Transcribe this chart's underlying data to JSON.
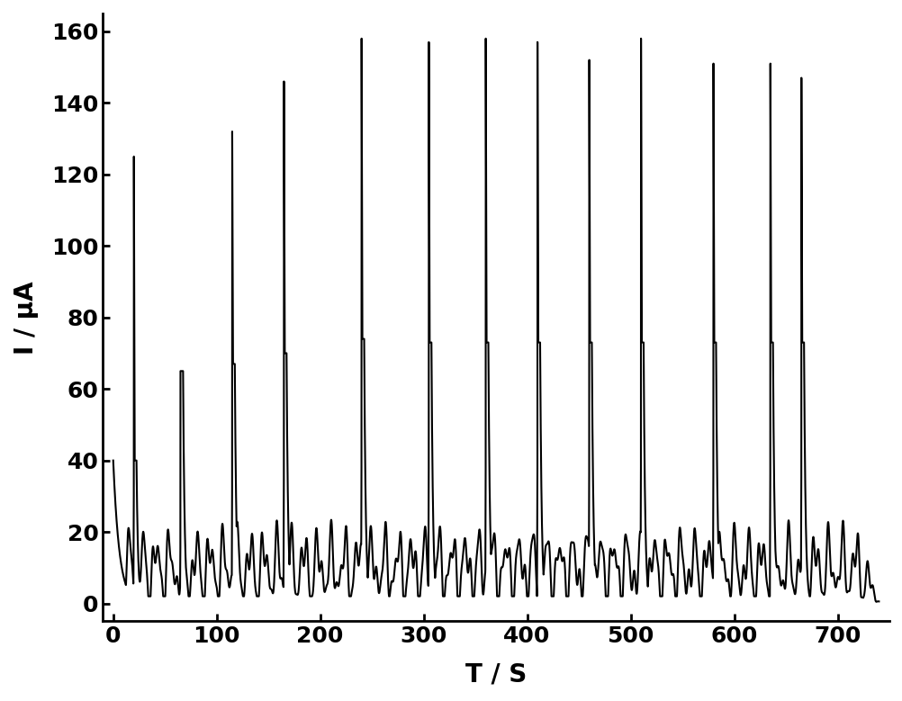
{
  "title": "",
  "xlabel": "T / S",
  "ylabel": "I / μA",
  "xlim": [
    -10,
    750
  ],
  "ylim": [
    -5,
    165
  ],
  "xticks": [
    0,
    100,
    200,
    300,
    400,
    500,
    600,
    700
  ],
  "yticks": [
    0,
    20,
    40,
    60,
    80,
    100,
    120,
    140,
    160
  ],
  "spikes": [
    {
      "t": 20,
      "peak": 125,
      "plat": 40
    },
    {
      "t": 65,
      "peak": 65,
      "plat": 65
    },
    {
      "t": 115,
      "peak": 132,
      "plat": 67
    },
    {
      "t": 165,
      "peak": 146,
      "plat": 70
    },
    {
      "t": 240,
      "peak": 158,
      "plat": 74
    },
    {
      "t": 305,
      "peak": 157,
      "plat": 73
    },
    {
      "t": 360,
      "peak": 158,
      "plat": 73
    },
    {
      "t": 410,
      "peak": 157,
      "plat": 73
    },
    {
      "t": 460,
      "peak": 152,
      "plat": 73
    },
    {
      "t": 510,
      "peak": 158,
      "plat": 73
    },
    {
      "t": 580,
      "peak": 151,
      "plat": 73
    },
    {
      "t": 635,
      "peak": 151,
      "plat": 73
    },
    {
      "t": 665,
      "peak": 147,
      "plat": 73
    }
  ],
  "background_color": "#ffffff",
  "line_color": "#000000",
  "line_width": 1.5,
  "tick_fontsize": 18,
  "label_fontsize": 20
}
